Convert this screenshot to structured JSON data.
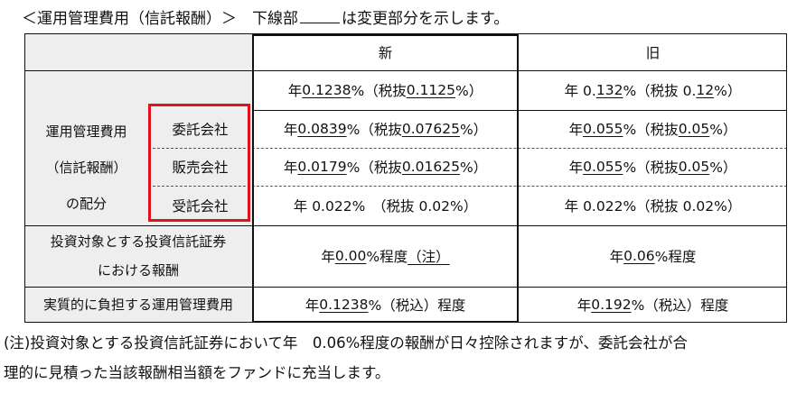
{
  "heading": {
    "prefix": "＜運用管理費用（信託報酬）＞　下線部",
    "suffix": "は変更部分を示します。"
  },
  "table": {
    "header_new": "新",
    "header_old": "旧",
    "group_label_lines": [
      "運用管理費用",
      "（信託報酬）",
      "の配分"
    ],
    "rows": {
      "total": {
        "new": [
          {
            "t": "年 "
          },
          {
            "t": "0.1238",
            "u": true
          },
          {
            "t": "%（税抜 "
          },
          {
            "t": "0.1125",
            "u": true
          },
          {
            "t": "%）"
          }
        ],
        "old": [
          {
            "t": "年 0."
          },
          {
            "t": "132",
            "u": true
          },
          {
            "t": "%（税抜 0."
          },
          {
            "t": "12",
            "u": true
          },
          {
            "t": "%）"
          }
        ]
      },
      "itaku": {
        "label": "委託会社",
        "new": [
          {
            "t": "年 "
          },
          {
            "t": "0.0839",
            "u": true
          },
          {
            "t": "%（税抜 "
          },
          {
            "t": "0.07625",
            "u": true
          },
          {
            "t": "%）"
          }
        ],
        "old": [
          {
            "t": "年 "
          },
          {
            "t": "0.055",
            "u": true
          },
          {
            "t": "%（税抜 "
          },
          {
            "t": "0.05",
            "u": true
          },
          {
            "t": "%）"
          }
        ]
      },
      "hanbai": {
        "label": "販売会社",
        "new": [
          {
            "t": "年 "
          },
          {
            "t": "0.0179",
            "u": true
          },
          {
            "t": "%（税抜 "
          },
          {
            "t": "0.01625",
            "u": true
          },
          {
            "t": "%）"
          }
        ],
        "old": [
          {
            "t": "年 "
          },
          {
            "t": "0.055",
            "u": true
          },
          {
            "t": "%（税抜 "
          },
          {
            "t": "0.05",
            "u": true
          },
          {
            "t": "%）"
          }
        ]
      },
      "jutaku": {
        "label": "受託会社",
        "new": [
          {
            "t": "年 0.022%　（税抜 0.02%）"
          }
        ],
        "old": [
          {
            "t": "年 0.022%（税抜 0.02%）"
          }
        ]
      },
      "invest": {
        "label_lines": [
          "投資対象とする投資信託証券",
          "における報酬"
        ],
        "new": [
          {
            "t": "年 "
          },
          {
            "t": "0.00",
            "u": true
          },
          {
            "t": "%程度"
          },
          {
            "t": "（注）",
            "u": true
          }
        ],
        "old": [
          {
            "t": "年 "
          },
          {
            "t": "0.06",
            "u": true
          },
          {
            "t": "%程度"
          }
        ]
      },
      "real": {
        "label": "実質的に負担する運用管理費用",
        "new": [
          {
            "t": "年 "
          },
          {
            "t": "0.1238",
            "u": true
          },
          {
            "t": "%（税込）程度"
          }
        ],
        "old": [
          {
            "t": "年 "
          },
          {
            "t": "0.192",
            "u": true
          },
          {
            "t": "%（税込）程度"
          }
        ]
      }
    }
  },
  "note_lines": [
    "(注)投資対象とする投資信託証券において年　0.06%程度の報酬が日々控除されますが、委託会社が合",
    "理的に見積った当該報酬相当額をファンドに充当します。"
  ]
}
